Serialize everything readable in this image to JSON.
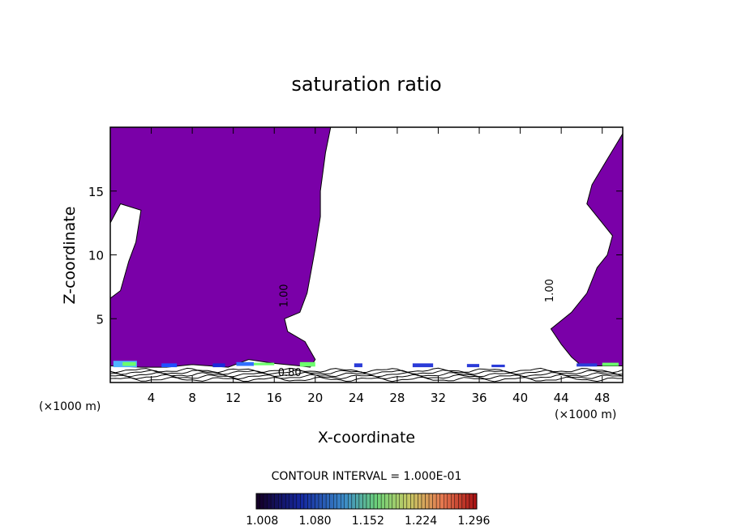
{
  "chart_data": {
    "type": "heatmap",
    "title": "saturation ratio",
    "xlabel": "X-coordinate",
    "ylabel": "Z-coordinate",
    "x_unit": "(×1000 m)",
    "z_unit": "(×1000 m)",
    "xlim": [
      0,
      50
    ],
    "ylim": [
      0,
      20
    ],
    "x_ticks": [
      4,
      8,
      12,
      16,
      20,
      24,
      28,
      32,
      36,
      40,
      44,
      48
    ],
    "y_ticks": [
      5,
      10,
      15
    ],
    "contour_interval_text": "CONTOUR INTERVAL = 1.000E-01",
    "contour_labels": [
      "1.00",
      "1.00",
      "0.80"
    ],
    "colorbar": {
      "ticks": [
        "1.008",
        "1.080",
        "1.152",
        "1.224",
        "1.296"
      ],
      "range": [
        1.0,
        1.3
      ]
    },
    "fill_color": "#7a00a8",
    "regions": [
      {
        "name": "left supersaturated region",
        "points": [
          [
            0,
            20
          ],
          [
            21.5,
            20
          ],
          [
            21,
            18
          ],
          [
            20.5,
            15
          ],
          [
            20.5,
            13
          ],
          [
            20,
            10.5
          ],
          [
            19.2,
            7
          ],
          [
            18.5,
            5.5
          ],
          [
            17,
            5
          ],
          [
            17.3,
            4
          ],
          [
            19,
            3.2
          ],
          [
            20,
            1.8
          ],
          [
            19.5,
            1.2
          ],
          [
            18.5,
            1.3
          ],
          [
            16,
            1.5
          ],
          [
            13.5,
            1.8
          ],
          [
            11.5,
            1.2
          ],
          [
            8,
            1.4
          ],
          [
            5.5,
            1.2
          ],
          [
            3,
            1.2
          ],
          [
            0,
            1.3
          ],
          [
            0,
            6.6
          ],
          [
            1,
            7.2
          ],
          [
            1.8,
            9.5
          ],
          [
            2.5,
            11
          ],
          [
            3,
            13.5
          ],
          [
            1,
            14
          ],
          [
            0,
            12.5
          ]
        ]
      },
      {
        "name": "right supersaturated region",
        "points": [
          [
            50,
            19.5
          ],
          [
            48.5,
            17.5
          ],
          [
            47,
            15.5
          ],
          [
            46.5,
            14
          ],
          [
            48,
            12.5
          ],
          [
            49,
            11.5
          ],
          [
            48.5,
            10
          ],
          [
            47.5,
            9
          ],
          [
            46.5,
            7
          ],
          [
            45,
            5.5
          ],
          [
            43,
            4.2
          ],
          [
            44,
            3
          ],
          [
            45,
            2
          ],
          [
            46,
            1.3
          ],
          [
            50,
            1.3
          ],
          [
            50,
            3
          ]
        ]
      }
    ]
  }
}
